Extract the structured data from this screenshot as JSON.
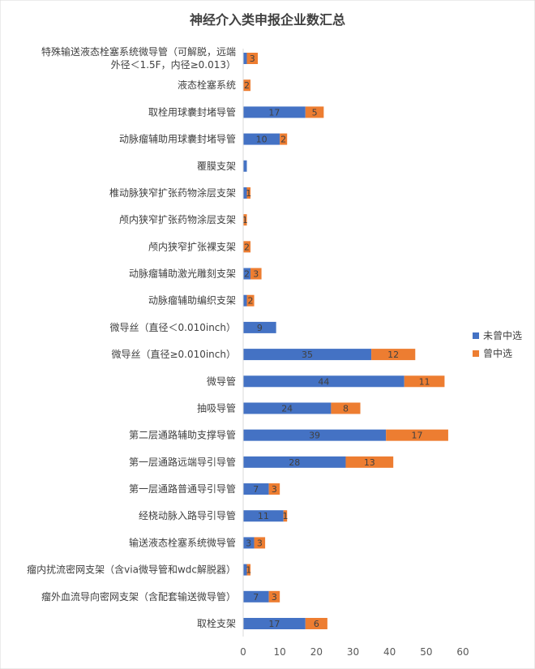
{
  "chart_data": {
    "type": "bar",
    "orientation": "horizontal",
    "stacked": true,
    "title": "神经介入类申报企业数汇总",
    "categories": [
      [
        "特殊输送液态栓塞系统微导管（可解脱，远端",
        "外径＜1.5F，内径≥0.013）"
      ],
      [
        "液态栓塞系统"
      ],
      [
        "取栓用球囊封堵导管"
      ],
      [
        "动脉瘤辅助用球囊封堵导管"
      ],
      [
        "覆膜支架"
      ],
      [
        "椎动脉狭窄扩张药物涂层支架"
      ],
      [
        "颅内狭窄扩张药物涂层支架"
      ],
      [
        "颅内狭窄扩张裸支架"
      ],
      [
        "动脉瘤辅助激光雕刻支架"
      ],
      [
        "动脉瘤辅助编织支架"
      ],
      [
        "微导丝（直径＜0.010inch）"
      ],
      [
        "微导丝（直径≥0.010inch）"
      ],
      [
        "微导管"
      ],
      [
        "抽吸导管"
      ],
      [
        "第二层通路辅助支撑导管"
      ],
      [
        "第一层通路远端导引导管"
      ],
      [
        "第一层通路普通导引导管"
      ],
      [
        "经桡动脉入路导引导管"
      ],
      [
        "输送液态栓塞系统微导管"
      ],
      [
        "瘤内扰流密网支架（含via微导管和wdc解脱器）"
      ],
      [
        "瘤外血流导向密网支架（含配套输送微导管）"
      ],
      [
        "取栓支架"
      ]
    ],
    "series": [
      {
        "name": "未曾中选",
        "color": "#4472C4",
        "values": [
          1,
          0,
          17,
          10,
          1,
          1,
          0,
          0,
          2,
          1,
          9,
          35,
          44,
          24,
          39,
          28,
          7,
          11,
          3,
          1,
          7,
          17
        ],
        "labels": [
          "",
          "",
          "17",
          "10",
          "",
          "",
          "",
          "",
          "2",
          "",
          "9",
          "35",
          "44",
          "24",
          "39",
          "28",
          "7",
          "11",
          "3",
          "",
          "7",
          "17"
        ]
      },
      {
        "name": "曾中选",
        "color": "#ED7D31",
        "values": [
          3,
          2,
          5,
          2,
          0,
          1,
          1,
          2,
          3,
          2,
          0,
          12,
          11,
          8,
          17,
          13,
          3,
          1,
          3,
          1,
          3,
          6
        ],
        "labels": [
          "3",
          "2",
          "5",
          "2",
          "",
          "1",
          "1",
          "2",
          "3",
          "2",
          "",
          "12",
          "11",
          "8",
          "17",
          "13",
          "3",
          "1",
          "3",
          "1",
          "3",
          "6"
        ]
      }
    ],
    "xlim": [
      0,
      60
    ],
    "xticks": [
      "0",
      "10",
      "20",
      "30",
      "40",
      "50",
      "60"
    ],
    "grid": false,
    "legend": "right"
  }
}
